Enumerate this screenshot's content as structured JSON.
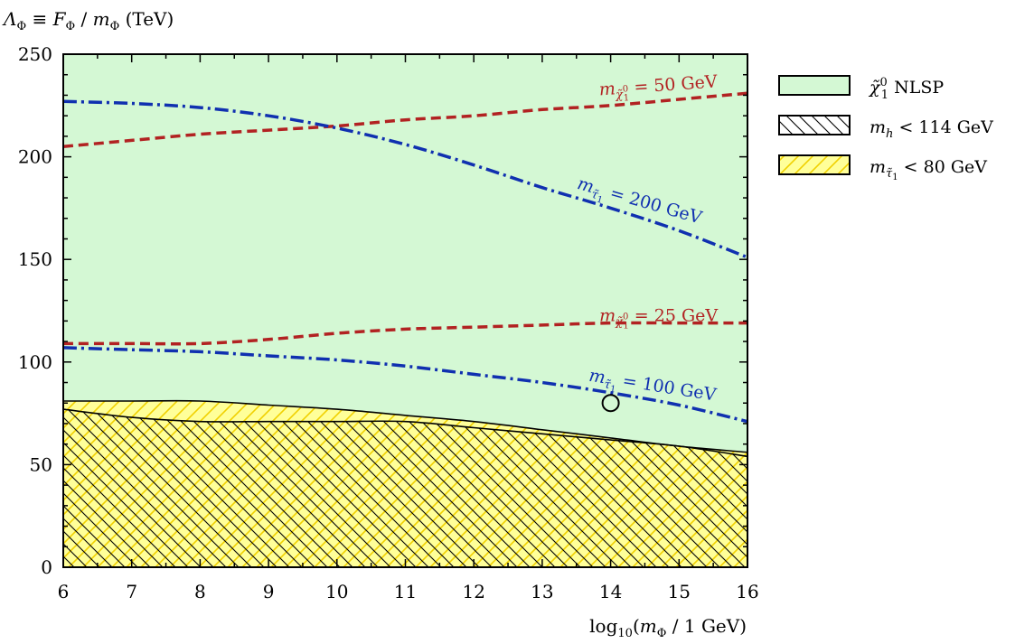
{
  "chart_data": {
    "type": "area",
    "ylabel": "ΛΦ ≡ FΦ / mΦ (TeV)",
    "xlabel": "log10(mΦ / 1 GeV)",
    "xlim": [
      6,
      16
    ],
    "ylim": [
      0,
      250
    ],
    "xticks": [
      6,
      7,
      8,
      9,
      10,
      11,
      12,
      13,
      14,
      15,
      16
    ],
    "yticks": [
      0,
      50,
      100,
      150,
      200,
      250
    ],
    "grid": false,
    "legend_position": "right",
    "regions": [
      {
        "name": "χ̃⁰₁ NLSP",
        "fill": "#d4f8d4",
        "pattern": "solid",
        "ymax": 250
      },
      {
        "name": "m_h < 114 GeV",
        "fill": "none",
        "pattern": "hatch-backslash",
        "boundary": {
          "x": [
            6,
            7,
            8,
            9,
            10,
            11,
            12,
            13,
            14,
            15,
            16
          ],
          "y": [
            77,
            73,
            71,
            71,
            71,
            71,
            68,
            65,
            62,
            59,
            54
          ]
        }
      },
      {
        "name": "m_τ̃1 < 80 GeV",
        "fill": "#ffff99",
        "pattern": "hatch-slash",
        "stroke": "#f0d000",
        "boundary": {
          "x": [
            6,
            7,
            8,
            9,
            10,
            11,
            12,
            13,
            14,
            15,
            16
          ],
          "y": [
            81,
            81,
            81,
            79,
            77,
            74,
            71,
            67,
            63,
            59,
            56
          ]
        }
      }
    ],
    "series": [
      {
        "label": "m_χ̃⁰₁ = 50 GeV",
        "color": "#b22222",
        "dash": "dashed",
        "x": [
          6,
          7,
          8,
          9,
          10,
          11,
          12,
          13,
          14,
          15,
          16
        ],
        "y": [
          205,
          208,
          211,
          213,
          215,
          218,
          220,
          223,
          225,
          228,
          231
        ]
      },
      {
        "label": "m_τ̃1 = 200 GeV",
        "color": "#1030b0",
        "dash": "dashdot",
        "x": [
          6,
          7,
          8,
          9,
          10,
          11,
          12,
          13,
          14,
          15,
          16
        ],
        "y": [
          227,
          226,
          224,
          220,
          214,
          206,
          196,
          185,
          175,
          164,
          151
        ]
      },
      {
        "label": "m_χ̃⁰₁ = 25 GeV",
        "color": "#b22222",
        "dash": "dashed",
        "x": [
          6,
          7,
          8,
          9,
          10,
          11,
          12,
          13,
          14,
          15,
          16
        ],
        "y": [
          109,
          109,
          109,
          111,
          114,
          116,
          117,
          118,
          119,
          119,
          119
        ]
      },
      {
        "label": "m_τ̃1 = 100 GeV",
        "color": "#1030b0",
        "dash": "dashdot",
        "x": [
          6,
          7,
          8,
          9,
          10,
          11,
          12,
          13,
          14,
          15,
          16
        ],
        "y": [
          107,
          106,
          105,
          103,
          101,
          98,
          94,
          90,
          85,
          79,
          71
        ]
      }
    ],
    "points": [
      {
        "x": 14,
        "y": 80,
        "marker": "open-circle"
      }
    ],
    "curve_labels": [
      {
        "text": "m_χ̃⁰₁ = 50 GeV",
        "main": "m",
        "sub": "χ̃",
        "subsub": "1",
        "subsup": "0",
        "rest": " = 50 GeV",
        "x": 14.7,
        "y": 232,
        "angle": -4,
        "color": "#b22222"
      },
      {
        "text": "m_τ̃1 = 200 GeV",
        "main": "m",
        "sub": "τ̃",
        "subsub": "1",
        "subsup": "",
        "rest": " = 200 GeV",
        "x": 14.4,
        "y": 176,
        "angle": 16,
        "color": "#1030b0"
      },
      {
        "text": "m_χ̃⁰₁ = 25 GeV",
        "main": "m",
        "sub": "χ̃",
        "subsub": "1",
        "subsup": "0",
        "rest": " = 25 GeV",
        "x": 14.7,
        "y": 120,
        "angle": 0,
        "color": "#b22222"
      },
      {
        "text": "m_τ̃1 = 100 GeV",
        "main": "m",
        "sub": "τ̃",
        "subsub": "1",
        "subsup": "",
        "rest": " = 100 GeV",
        "x": 14.6,
        "y": 86,
        "angle": 9,
        "color": "#1030b0"
      }
    ],
    "legend": [
      {
        "label": "χ̃⁰₁ NLSP",
        "swatch": "nlsp"
      },
      {
        "label": "m_h < 114 GeV",
        "swatch": "higgs"
      },
      {
        "label": "m_τ̃1 < 80 GeV",
        "swatch": "stau"
      }
    ]
  }
}
